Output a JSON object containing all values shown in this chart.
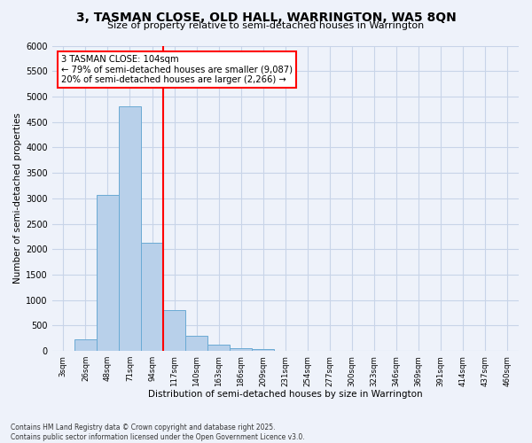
{
  "title1": "3, TASMAN CLOSE, OLD HALL, WARRINGTON, WA5 8QN",
  "title2": "Size of property relative to semi-detached houses in Warrington",
  "xlabel": "Distribution of semi-detached houses by size in Warrington",
  "ylabel": "Number of semi-detached properties",
  "bar_labels": [
    "3sqm",
    "26sqm",
    "48sqm",
    "71sqm",
    "94sqm",
    "117sqm",
    "140sqm",
    "163sqm",
    "186sqm",
    "209sqm",
    "231sqm",
    "254sqm",
    "277sqm",
    "300sqm",
    "323sqm",
    "346sqm",
    "369sqm",
    "391sqm",
    "414sqm",
    "437sqm",
    "460sqm"
  ],
  "bar_values": [
    0,
    230,
    3060,
    4800,
    2130,
    800,
    295,
    130,
    60,
    30,
    10,
    5,
    0,
    0,
    0,
    0,
    0,
    0,
    0,
    0,
    0
  ],
  "ylim": [
    0,
    6000
  ],
  "yticks": [
    0,
    500,
    1000,
    1500,
    2000,
    2500,
    3000,
    3500,
    4000,
    4500,
    5000,
    5500,
    6000
  ],
  "bar_color": "#b8d0ea",
  "bar_edge_color": "#6aaad4",
  "vline_x": 4.5,
  "vline_color": "red",
  "annotation_title": "3 TASMAN CLOSE: 104sqm",
  "annotation_line1": "← 79% of semi-detached houses are smaller (9,087)",
  "annotation_line2": "20% of semi-detached houses are larger (2,266) →",
  "annotation_box_color": "red",
  "footer1": "Contains HM Land Registry data © Crown copyright and database right 2025.",
  "footer2": "Contains public sector information licensed under the Open Government Licence v3.0.",
  "bg_color": "#eef2fa",
  "grid_color": "#c8d4e8"
}
